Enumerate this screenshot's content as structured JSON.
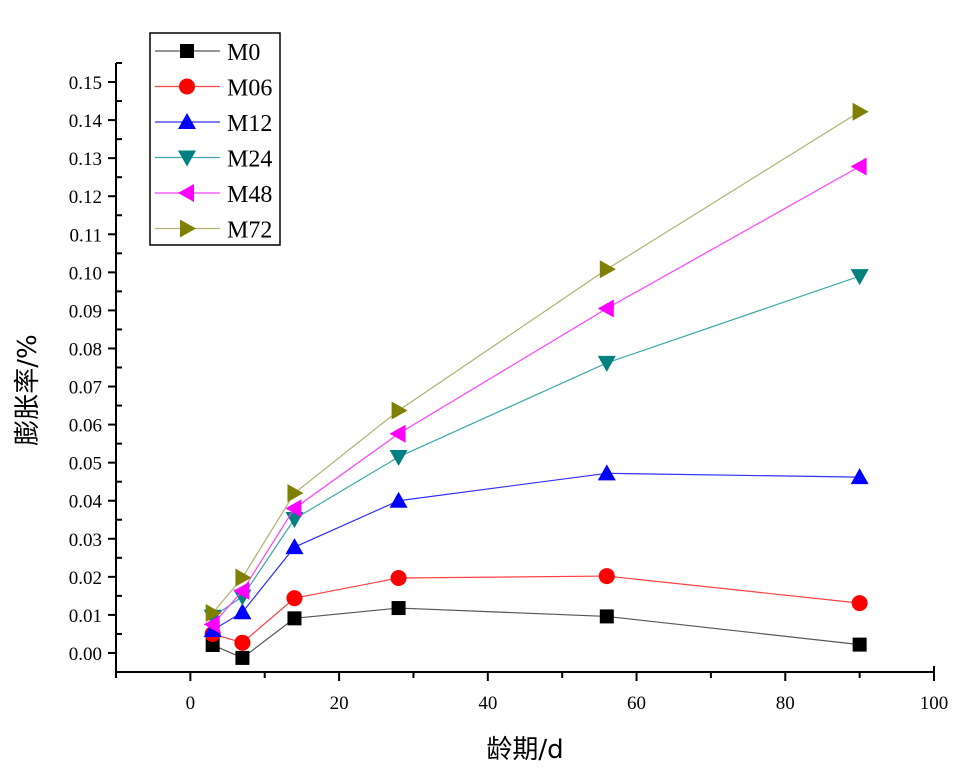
{
  "chart_data": {
    "type": "line",
    "title": "",
    "xlabel": "龄期/d",
    "ylabel": "膨胀率/%",
    "xlim": [
      -10,
      100
    ],
    "ylim": [
      -0.005,
      0.155
    ],
    "xticks": [
      0,
      20,
      40,
      60,
      80,
      100
    ],
    "xtick_labels": [
      "0",
      "20",
      "40",
      "60",
      "80",
      "100"
    ],
    "x_minor_step": 10,
    "yticks": [
      0.0,
      0.01,
      0.02,
      0.03,
      0.04,
      0.05,
      0.06,
      0.07,
      0.08,
      0.09,
      0.1,
      0.11,
      0.12,
      0.13,
      0.14,
      0.15
    ],
    "ytick_labels": [
      "0.00",
      "0.01",
      "0.02",
      "0.03",
      "0.04",
      "0.05",
      "0.06",
      "0.07",
      "0.08",
      "0.09",
      "0.10",
      "0.11",
      "0.12",
      "0.13",
      "0.14",
      "0.15"
    ],
    "y_minor_step": 0.005,
    "grid": false,
    "legend_position": "top-left",
    "x": [
      3,
      7,
      14,
      28,
      56,
      90
    ],
    "series": [
      {
        "name": "M0",
        "marker": "square",
        "color": "#000000",
        "line_color": "#555555",
        "values": [
          0.0021,
          -0.0013,
          0.0091,
          0.0118,
          0.0096,
          0.0022
        ]
      },
      {
        "name": "M06",
        "marker": "circle",
        "color": "#ff0000",
        "line_color": "#ff4040",
        "values": [
          0.005,
          0.0027,
          0.0144,
          0.0197,
          0.0202,
          0.0131
        ]
      },
      {
        "name": "M12",
        "marker": "triangle-up",
        "color": "#0000ff",
        "line_color": "#3030ff",
        "values": [
          0.006,
          0.0107,
          0.0278,
          0.04,
          0.0472,
          0.0462
        ]
      },
      {
        "name": "M24",
        "marker": "triangle-down",
        "color": "#008080",
        "line_color": "#40a8a8",
        "values": [
          0.0095,
          0.0148,
          0.0352,
          0.0515,
          0.0762,
          0.099
        ]
      },
      {
        "name": "M48",
        "marker": "triangle-left",
        "color": "#ff00ff",
        "line_color": "#ff40ff",
        "values": [
          0.0075,
          0.0163,
          0.038,
          0.0576,
          0.0905,
          0.1278
        ]
      },
      {
        "name": "M72",
        "marker": "triangle-right",
        "color": "#808000",
        "line_color": "#b0b070",
        "values": [
          0.0105,
          0.0198,
          0.042,
          0.0637,
          0.1008,
          0.1422
        ]
      }
    ]
  }
}
